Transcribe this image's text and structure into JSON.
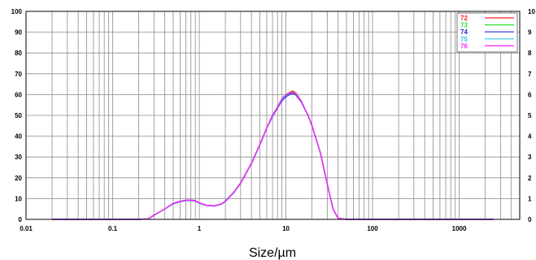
{
  "chart_data": {
    "type": "line",
    "xscale": "log",
    "xlim": [
      0.01,
      5000
    ],
    "ylim": [
      0,
      100
    ],
    "xlabel": "Size/µm",
    "ylabel": "",
    "x_ticks": [
      {
        "value": 0.01,
        "label": "0.01"
      },
      {
        "value": 0.1,
        "label": "0.1"
      },
      {
        "value": 1,
        "label": "1"
      },
      {
        "value": 10,
        "label": "10"
      },
      {
        "value": 100,
        "label": "100"
      },
      {
        "value": 1000,
        "label": "1000"
      }
    ],
    "y_ticks": [
      {
        "value": 0,
        "label": "0"
      },
      {
        "value": 10,
        "label": "10"
      },
      {
        "value": 20,
        "label": "20"
      },
      {
        "value": 30,
        "label": "30"
      },
      {
        "value": 40,
        "label": "40"
      },
      {
        "value": 50,
        "label": "50"
      },
      {
        "value": 60,
        "label": "60"
      },
      {
        "value": 70,
        "label": "70"
      },
      {
        "value": 80,
        "label": "80"
      },
      {
        "value": 90,
        "label": "90"
      },
      {
        "value": 100,
        "label": "100"
      }
    ],
    "right_ticks": [
      {
        "value": 0,
        "label": "0"
      },
      {
        "value": 10,
        "label": "1"
      },
      {
        "value": 20,
        "label": "2"
      },
      {
        "value": 30,
        "label": "3"
      },
      {
        "value": 40,
        "label": "4"
      },
      {
        "value": 50,
        "label": "5"
      },
      {
        "value": 60,
        "label": "6"
      },
      {
        "value": 70,
        "label": "7"
      },
      {
        "value": 80,
        "label": "8"
      },
      {
        "value": 90,
        "label": "9"
      },
      {
        "value": 100,
        "label": "10"
      }
    ],
    "grid": true,
    "legend_position": "top-right",
    "series": [
      {
        "name": "72",
        "color": "#ff2020",
        "x": [
          0.02,
          0.2,
          0.26,
          0.3,
          0.4,
          0.5,
          0.6,
          0.7,
          0.8,
          0.9,
          1,
          1.2,
          1.5,
          1.8,
          2,
          2.5,
          3,
          4,
          5,
          6,
          7,
          8,
          9,
          10,
          11,
          12,
          13,
          15,
          18,
          20,
          25,
          30,
          35,
          40,
          50,
          100,
          500,
          1000,
          2500
        ],
        "y": [
          0,
          0,
          0.3,
          2,
          5,
          7.7,
          8.7,
          9.2,
          9.3,
          9,
          8,
          6.8,
          6.5,
          7.4,
          8.8,
          13,
          17.5,
          27,
          36,
          44,
          50,
          54,
          58,
          60,
          61,
          61.7,
          60.8,
          57,
          50,
          45,
          32,
          17,
          5,
          0.5,
          0,
          0,
          0,
          0,
          0
        ]
      },
      {
        "name": "73",
        "color": "#30e030",
        "x": [
          0.02,
          0.2,
          0.26,
          0.3,
          0.4,
          0.5,
          0.6,
          0.7,
          0.8,
          0.9,
          1,
          1.2,
          1.5,
          1.8,
          2,
          2.5,
          3,
          4,
          5,
          6,
          7,
          8,
          9,
          10,
          11,
          12,
          13,
          15,
          18,
          20,
          25,
          30,
          35,
          40,
          50,
          100,
          500,
          1000,
          2500
        ],
        "y": [
          0,
          0,
          0.3,
          2,
          5,
          7.7,
          8.7,
          9.2,
          9.3,
          9,
          8,
          6.8,
          6.5,
          7.4,
          8.8,
          13,
          17.5,
          27,
          36,
          44,
          50,
          54,
          58,
          60,
          60.7,
          61.2,
          60.5,
          56.8,
          50,
          45,
          32,
          17,
          5,
          0.5,
          0,
          0,
          0,
          0,
          0
        ]
      },
      {
        "name": "74",
        "color": "#2020e0",
        "x": [
          0.02,
          0.2,
          0.26,
          0.3,
          0.4,
          0.5,
          0.6,
          0.7,
          0.8,
          0.9,
          1,
          1.2,
          1.5,
          1.8,
          2,
          2.5,
          3,
          4,
          5,
          6,
          7,
          8,
          9,
          10,
          11,
          12,
          13,
          15,
          18,
          20,
          25,
          30,
          35,
          40,
          50,
          100,
          500,
          1000,
          2500
        ],
        "y": [
          0,
          0,
          0.3,
          2,
          5,
          7.5,
          8.5,
          9,
          9.1,
          8.8,
          7.8,
          6.7,
          6.4,
          7.3,
          8.6,
          12.8,
          17.3,
          26.8,
          35.8,
          43.8,
          49.5,
          53.5,
          57,
          59,
          60,
          60.5,
          59.8,
          56.5,
          50,
          45,
          32,
          17,
          5,
          0.5,
          0,
          0,
          0,
          0,
          0
        ]
      },
      {
        "name": "75",
        "color": "#30c8e8",
        "x": [
          0.02,
          0.2,
          0.26,
          0.3,
          0.4,
          0.5,
          0.6,
          0.7,
          0.8,
          0.9,
          1,
          1.2,
          1.5,
          1.8,
          2,
          2.5,
          3,
          4,
          5,
          6,
          7,
          8,
          9,
          10,
          11,
          12,
          13,
          15,
          18,
          20,
          25,
          30,
          35,
          40,
          50,
          100,
          500,
          1000,
          2500
        ],
        "y": [
          0,
          0,
          0.3,
          2,
          5,
          7.6,
          8.6,
          9.1,
          9.2,
          8.9,
          7.9,
          6.7,
          6.4,
          7.3,
          8.7,
          12.9,
          17.4,
          26.9,
          35.9,
          43.9,
          49.8,
          53.8,
          57.5,
          59.5,
          60.4,
          60.9,
          60.2,
          56.7,
          50,
          45,
          32,
          17,
          5,
          0.5,
          0,
          0,
          0,
          0,
          0
        ]
      },
      {
        "name": "76",
        "color": "#ff20ff",
        "x": [
          0.02,
          0.2,
          0.26,
          0.3,
          0.4,
          0.5,
          0.6,
          0.7,
          0.8,
          0.9,
          1,
          1.2,
          1.5,
          1.8,
          2,
          2.5,
          3,
          4,
          5,
          6,
          7,
          8,
          9,
          10,
          11,
          12,
          13,
          15,
          18,
          20,
          25,
          30,
          35,
          40,
          50,
          100,
          500,
          1000,
          2500
        ],
        "y": [
          0,
          0,
          0.3,
          2,
          5,
          7.7,
          8.7,
          9.2,
          9.3,
          9,
          8,
          6.8,
          6.5,
          7.4,
          8.8,
          13,
          17.5,
          27,
          36,
          44,
          50,
          54,
          58,
          59.8,
          60.6,
          61,
          60.4,
          56.8,
          50,
          45,
          32,
          17,
          5,
          0.5,
          0,
          0,
          0,
          0,
          0
        ]
      }
    ]
  }
}
